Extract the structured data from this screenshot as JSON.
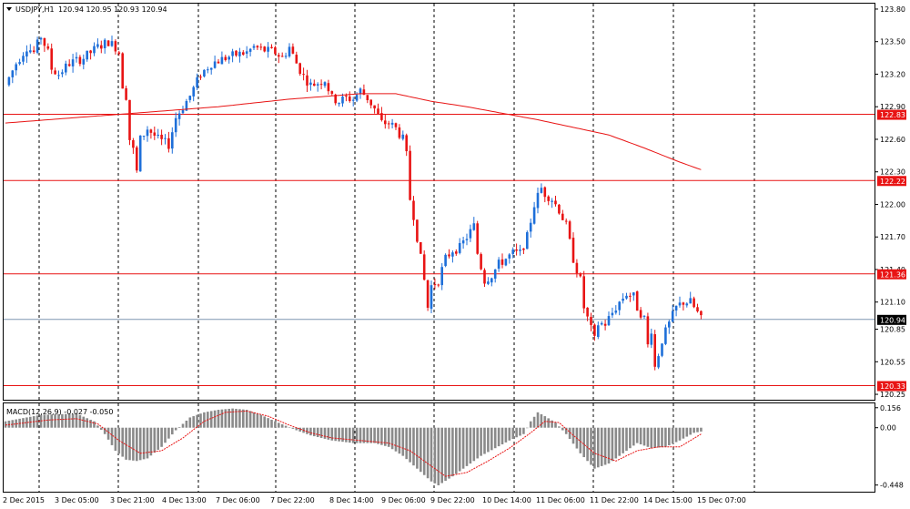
{
  "header": {
    "symbol": "USDJPY,H1",
    "ohlc": "120.94 120.95 120.93 120.94"
  },
  "colors": {
    "bull": "#1e6fd9",
    "bear": "#e81414",
    "ma": "#e81414",
    "level_line": "#e81414",
    "current_line": "#7f95b0",
    "macd_hist": "#8a8a8a",
    "macd_signal": "#e81414",
    "grid": "#000000",
    "axis_text": "#000000",
    "label_bg": "#e81414",
    "current_bg": "#000000"
  },
  "chart_data": [
    {
      "type": "candlestick",
      "title": "USDJPY,H1",
      "y_ticks": [
        "123.80",
        "123.50",
        "123.20",
        "122.90",
        "122.60",
        "122.30",
        "122.00",
        "121.70",
        "121.40",
        "121.10",
        "120.85",
        "120.55",
        "120.25"
      ],
      "x_ticks": [
        "2 Dec 2015",
        "3 Dec 05:00",
        "3 Dec 21:00",
        "4 Dec 13:00",
        "7 Dec 06:00",
        "7 Dec 22:00",
        "8 Dec 14:00",
        "9 Dec 06:00",
        "9 Dec 22:00",
        "10 Dec 14:00",
        "11 Dec 06:00",
        "11 Dec 22:00",
        "14 Dec 15:00",
        "15 Dec 07:00"
      ],
      "ylim": [
        120.2,
        123.85
      ],
      "grid": "vertical-dashed",
      "horizontal_levels": [
        {
          "label": "122.83",
          "value": 122.83
        },
        {
          "label": "122.22",
          "value": 122.22
        },
        {
          "label": "121.36",
          "value": 121.36
        },
        {
          "label": "120.33",
          "value": 120.33
        }
      ],
      "current_price": {
        "label": "120.94",
        "value": 120.94
      },
      "price_path": [
        [
          0,
          123.1
        ],
        [
          3,
          123.3
        ],
        [
          6,
          123.45
        ],
        [
          8,
          123.4
        ],
        [
          10,
          123.55
        ],
        [
          12,
          123.4
        ],
        [
          13,
          123.25
        ],
        [
          15,
          123.2
        ],
        [
          18,
          123.3
        ],
        [
          22,
          123.35
        ],
        [
          26,
          123.45
        ],
        [
          29,
          123.5
        ],
        [
          31,
          123.45
        ],
        [
          32,
          123.4
        ],
        [
          33,
          123.1
        ],
        [
          34,
          123.0
        ],
        [
          35,
          122.6
        ],
        [
          36,
          122.5
        ],
        [
          37,
          122.3
        ],
        [
          38,
          122.6
        ],
        [
          40,
          122.7
        ],
        [
          43,
          122.6
        ],
        [
          46,
          122.55
        ],
        [
          48,
          122.8
        ],
        [
          50,
          122.9
        ],
        [
          52,
          123.0
        ],
        [
          55,
          123.2
        ],
        [
          58,
          123.3
        ],
        [
          62,
          123.35
        ],
        [
          65,
          123.38
        ],
        [
          68,
          123.4
        ],
        [
          70,
          123.45
        ],
        [
          73,
          123.42
        ],
        [
          76,
          123.4
        ],
        [
          78,
          123.35
        ],
        [
          80,
          123.45
        ],
        [
          82,
          123.3
        ],
        [
          84,
          123.18
        ],
        [
          86,
          123.1
        ],
        [
          88,
          123.12
        ],
        [
          90,
          123.15
        ],
        [
          92,
          122.98
        ],
        [
          94,
          122.95
        ],
        [
          96,
          122.98
        ],
        [
          98,
          122.97
        ],
        [
          100,
          123.05
        ],
        [
          102,
          122.98
        ],
        [
          104,
          122.88
        ],
        [
          106,
          122.75
        ],
        [
          108,
          122.75
        ],
        [
          110,
          122.7
        ],
        [
          112,
          122.6
        ],
        [
          113,
          122.45
        ],
        [
          114,
          122.05
        ],
        [
          115,
          121.9
        ],
        [
          116,
          121.7
        ],
        [
          117,
          121.5
        ],
        [
          118,
          121.3
        ],
        [
          119,
          121.05
        ],
        [
          120,
          121.25
        ],
        [
          122,
          121.3
        ],
        [
          124,
          121.5
        ],
        [
          126,
          121.58
        ],
        [
          128,
          121.6
        ],
        [
          130,
          121.7
        ],
        [
          132,
          121.8
        ],
        [
          133,
          121.55
        ],
        [
          135,
          121.3
        ],
        [
          137,
          121.35
        ],
        [
          139,
          121.45
        ],
        [
          141,
          121.5
        ],
        [
          143,
          121.55
        ],
        [
          145,
          121.55
        ],
        [
          147,
          121.7
        ],
        [
          149,
          122.0
        ],
        [
          151,
          122.15
        ],
        [
          152,
          122.1
        ],
        [
          154,
          122.05
        ],
        [
          156,
          121.95
        ],
        [
          158,
          121.8
        ],
        [
          160,
          121.5
        ],
        [
          162,
          121.3
        ],
        [
          163,
          121.05
        ],
        [
          164,
          120.95
        ],
        [
          165,
          120.85
        ],
        [
          166,
          120.75
        ],
        [
          167,
          120.9
        ],
        [
          169,
          120.9
        ],
        [
          171,
          121.0
        ],
        [
          173,
          121.1
        ],
        [
          175,
          121.18
        ],
        [
          177,
          121.15
        ],
        [
          178,
          121.05
        ],
        [
          180,
          120.95
        ],
        [
          181,
          120.7
        ],
        [
          182,
          120.85
        ],
        [
          183,
          120.5
        ],
        [
          185,
          120.75
        ],
        [
          187,
          120.9
        ],
        [
          189,
          121.05
        ],
        [
          191,
          121.1
        ],
        [
          193,
          121.1
        ],
        [
          195,
          121.0
        ],
        [
          196,
          120.94
        ]
      ],
      "ma_path": [
        [
          0,
          122.75
        ],
        [
          20,
          122.8
        ],
        [
          40,
          122.85
        ],
        [
          60,
          122.9
        ],
        [
          80,
          122.97
        ],
        [
          100,
          123.02
        ],
        [
          110,
          123.02
        ],
        [
          120,
          122.95
        ],
        [
          130,
          122.9
        ],
        [
          140,
          122.84
        ],
        [
          150,
          122.78
        ],
        [
          160,
          122.71
        ],
        [
          170,
          122.64
        ],
        [
          180,
          122.52
        ],
        [
          190,
          122.39
        ],
        [
          196,
          122.32
        ]
      ]
    },
    {
      "type": "histogram",
      "title": "MACD(12,26,9) -0.027 -0.050",
      "y_ticks": [
        "0.156",
        "0.00",
        "-0.448"
      ],
      "ylim": [
        -0.5,
        0.19
      ],
      "hist_path": [
        [
          0,
          0.05
        ],
        [
          10,
          0.1
        ],
        [
          20,
          0.11
        ],
        [
          25,
          0.05
        ],
        [
          28,
          -0.05
        ],
        [
          31,
          -0.18
        ],
        [
          34,
          -0.25
        ],
        [
          37,
          -0.26
        ],
        [
          40,
          -0.24
        ],
        [
          44,
          -0.15
        ],
        [
          48,
          -0.02
        ],
        [
          52,
          0.08
        ],
        [
          56,
          0.12
        ],
        [
          60,
          0.14
        ],
        [
          64,
          0.15
        ],
        [
          68,
          0.14
        ],
        [
          72,
          0.1
        ],
        [
          76,
          0.05
        ],
        [
          82,
          -0.02
        ],
        [
          86,
          -0.06
        ],
        [
          92,
          -0.1
        ],
        [
          98,
          -0.12
        ],
        [
          104,
          -0.12
        ],
        [
          108,
          -0.15
        ],
        [
          112,
          -0.22
        ],
        [
          116,
          -0.32
        ],
        [
          120,
          -0.42
        ],
        [
          122,
          -0.45
        ],
        [
          126,
          -0.38
        ],
        [
          130,
          -0.3
        ],
        [
          134,
          -0.22
        ],
        [
          138,
          -0.16
        ],
        [
          142,
          -0.1
        ],
        [
          146,
          -0.05
        ],
        [
          148,
          0.05
        ],
        [
          150,
          0.12
        ],
        [
          152,
          0.09
        ],
        [
          155,
          0.04
        ],
        [
          158,
          -0.05
        ],
        [
          162,
          -0.2
        ],
        [
          166,
          -0.32
        ],
        [
          170,
          -0.28
        ],
        [
          174,
          -0.2
        ],
        [
          178,
          -0.12
        ],
        [
          182,
          -0.16
        ],
        [
          186,
          -0.15
        ],
        [
          190,
          -0.1
        ],
        [
          194,
          -0.04
        ],
        [
          196,
          -0.03
        ]
      ],
      "signal_path": [
        [
          0,
          0.02
        ],
        [
          12,
          0.06
        ],
        [
          20,
          0.07
        ],
        [
          26,
          0.03
        ],
        [
          32,
          -0.1
        ],
        [
          38,
          -0.2
        ],
        [
          44,
          -0.18
        ],
        [
          50,
          -0.08
        ],
        [
          56,
          0.05
        ],
        [
          62,
          0.12
        ],
        [
          68,
          0.13
        ],
        [
          74,
          0.09
        ],
        [
          80,
          0.02
        ],
        [
          86,
          -0.04
        ],
        [
          92,
          -0.08
        ],
        [
          100,
          -0.1
        ],
        [
          108,
          -0.12
        ],
        [
          114,
          -0.18
        ],
        [
          120,
          -0.3
        ],
        [
          124,
          -0.38
        ],
        [
          130,
          -0.35
        ],
        [
          136,
          -0.26
        ],
        [
          142,
          -0.16
        ],
        [
          148,
          -0.04
        ],
        [
          152,
          0.05
        ],
        [
          156,
          0.04
        ],
        [
          160,
          -0.06
        ],
        [
          166,
          -0.2
        ],
        [
          172,
          -0.26
        ],
        [
          178,
          -0.18
        ],
        [
          184,
          -0.15
        ],
        [
          190,
          -0.15
        ],
        [
          196,
          -0.05
        ]
      ]
    }
  ]
}
